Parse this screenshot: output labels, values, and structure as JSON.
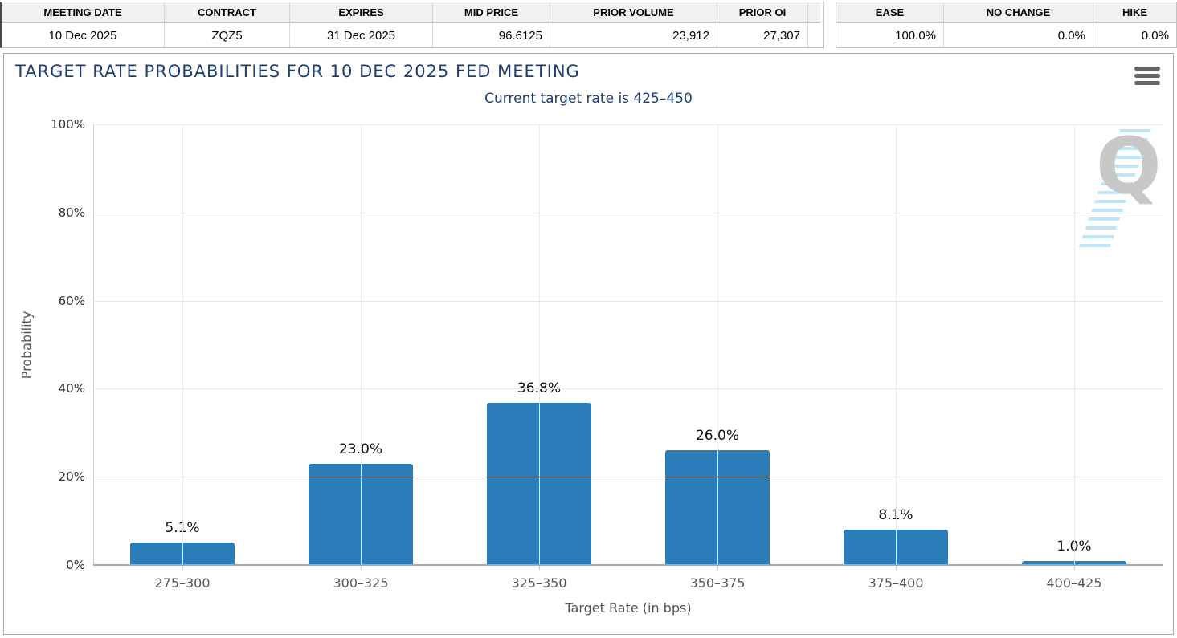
{
  "contract_table": {
    "cells": [
      {
        "label": "MEETING DATE",
        "value": "10 Dec 2025"
      },
      {
        "label": "CONTRACT",
        "value": "ZQZ5"
      },
      {
        "label": "EXPIRES",
        "value": "31 Dec 2025"
      },
      {
        "label": "MID PRICE",
        "value": "96.6125"
      },
      {
        "label": "PRIOR VOLUME",
        "value": "23,912"
      },
      {
        "label": "PRIOR OI",
        "value": "27,307"
      }
    ]
  },
  "action_table": {
    "cells": [
      {
        "label": "EASE",
        "value": "100.0%"
      },
      {
        "label": "NO CHANGE",
        "value": "0.0%"
      },
      {
        "label": "HIKE",
        "value": "0.0%"
      }
    ]
  },
  "chart": {
    "menu_icon": "hamburger-menu-icon",
    "watermark_letter": "Q"
  },
  "chart_data": {
    "type": "bar",
    "title": "TARGET RATE PROBABILITIES FOR 10 DEC 2025 FED MEETING",
    "subtitle": "Current target rate is 425–450",
    "categories": [
      "275–300",
      "300–325",
      "325–350",
      "350–375",
      "375–400",
      "400–425"
    ],
    "values": [
      5.1,
      23.0,
      36.8,
      26.0,
      8.1,
      1.0
    ],
    "value_labels": [
      "5.1%",
      "23.0%",
      "36.8%",
      "26.0%",
      "8.1%",
      "1.0%"
    ],
    "xlabel": "Target Rate (in bps)",
    "ylabel": "Probability",
    "ylim": [
      0,
      100
    ],
    "ytick_values": [
      0,
      20,
      40,
      60,
      80,
      100
    ],
    "ytick_labels": [
      "0%",
      "20%",
      "40%",
      "60%",
      "80%",
      "100%"
    ],
    "bar_color": "#2A7DB8",
    "grid": true,
    "legend": "none",
    "title_color": "#1e3e6e"
  }
}
